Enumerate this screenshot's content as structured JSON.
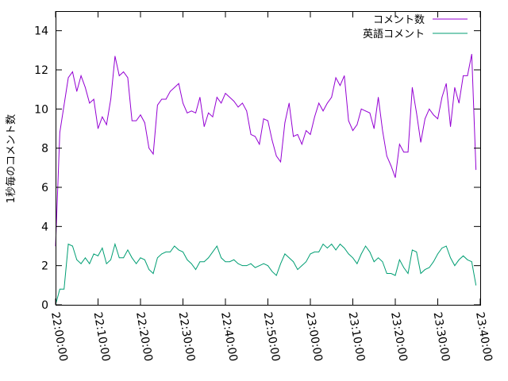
{
  "chart_data": {
    "type": "line",
    "title": "",
    "xlabel": "",
    "ylabel": "1秒毎のコメント数",
    "x_tick_labels": [
      "22:00:00",
      "22:10:00",
      "22:20:00",
      "22:30:00",
      "22:40:00",
      "22:50:00",
      "23:00:00",
      "23:10:00",
      "23:20:00",
      "23:30:00",
      "23:40:00"
    ],
    "x_range": [
      "22:00:00",
      "23:40:00"
    ],
    "x_step_seconds": 60,
    "x_start": "22:00:00",
    "ylim": [
      0,
      15
    ],
    "y_ticks": [
      0,
      2,
      4,
      6,
      8,
      10,
      12,
      14
    ],
    "grid": false,
    "legend_position": "top-right",
    "series": [
      {
        "name": "コメント数",
        "color": "#9400d3",
        "values": [
          3.0,
          8.8,
          10.2,
          11.6,
          11.9,
          10.9,
          11.7,
          11.1,
          10.3,
          10.5,
          9.0,
          9.6,
          9.2,
          10.5,
          12.7,
          11.7,
          11.9,
          11.6,
          9.4,
          9.4,
          9.7,
          9.3,
          8.0,
          7.7,
          10.2,
          10.5,
          10.5,
          10.9,
          11.1,
          11.3,
          10.3,
          9.8,
          9.9,
          9.8,
          10.6,
          9.1,
          9.8,
          9.6,
          10.6,
          10.3,
          10.8,
          10.6,
          10.4,
          10.1,
          10.3,
          9.9,
          8.7,
          8.6,
          8.2,
          9.5,
          9.4,
          8.4,
          7.6,
          7.3,
          9.3,
          10.3,
          8.6,
          8.7,
          8.2,
          8.9,
          8.7,
          9.6,
          10.3,
          9.9,
          10.3,
          10.6,
          11.6,
          11.2,
          11.7,
          9.4,
          8.9,
          9.2,
          10.0,
          9.9,
          9.8,
          9.0,
          10.6,
          8.9,
          7.6,
          7.1,
          6.5,
          8.2,
          7.8,
          7.8,
          11.1,
          9.8,
          8.3,
          9.5,
          10.0,
          9.7,
          9.5,
          10.6,
          11.3,
          9.1,
          11.1,
          10.3,
          11.7,
          11.7,
          12.8,
          6.9
        ]
      },
      {
        "name": "英語コメント",
        "color": "#009e73",
        "values": [
          0.0,
          0.8,
          0.8,
          3.1,
          3.0,
          2.3,
          2.1,
          2.4,
          2.1,
          2.6,
          2.5,
          2.9,
          2.1,
          2.3,
          3.1,
          2.4,
          2.4,
          2.8,
          2.4,
          2.1,
          2.4,
          2.3,
          1.8,
          1.6,
          2.4,
          2.6,
          2.7,
          2.7,
          3.0,
          2.8,
          2.7,
          2.3,
          2.1,
          1.8,
          2.2,
          2.2,
          2.4,
          2.7,
          3.0,
          2.4,
          2.2,
          2.2,
          2.3,
          2.1,
          2.0,
          2.0,
          2.1,
          1.9,
          2.0,
          2.1,
          2.0,
          1.7,
          1.5,
          2.1,
          2.6,
          2.4,
          2.2,
          1.8,
          2.0,
          2.2,
          2.6,
          2.7,
          2.7,
          3.1,
          2.9,
          3.1,
          2.8,
          3.1,
          2.9,
          2.6,
          2.4,
          2.1,
          2.6,
          3.0,
          2.7,
          2.2,
          2.4,
          2.2,
          1.6,
          1.6,
          1.5,
          2.3,
          1.9,
          1.6,
          2.8,
          2.7,
          1.6,
          1.8,
          1.9,
          2.2,
          2.6,
          2.9,
          3.0,
          2.4,
          2.0,
          2.3,
          2.5,
          2.3,
          2.2,
          1.0
        ]
      }
    ]
  }
}
